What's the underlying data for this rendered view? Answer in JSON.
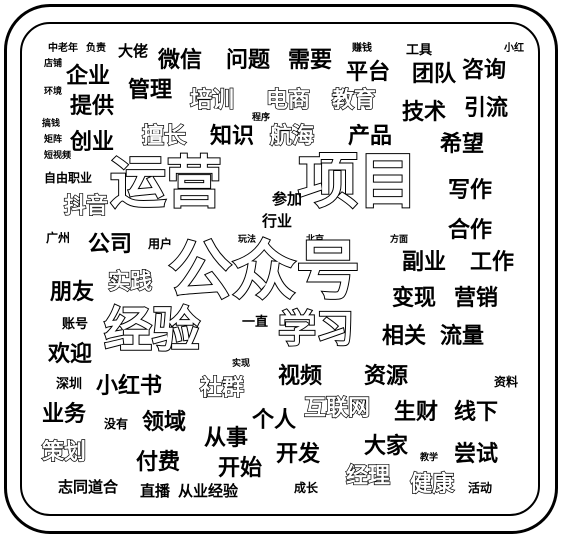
{
  "words": [
    "中老年",
    "负责",
    "大佬",
    "微信",
    "问题",
    "需要",
    "赚钱",
    "工具",
    "小红",
    "店铺",
    "企业",
    "管理",
    "平台",
    "团队",
    "咨询",
    "培训",
    "电商",
    "教育",
    "环境",
    "提供",
    "技术",
    "引流",
    "搞钱",
    "创业",
    "擅长",
    "知识",
    "航海",
    "产品",
    "希望",
    "程序",
    "矩阵",
    "短视频",
    "自由职业",
    "运营",
    "项目",
    "写作",
    "合作",
    "抖音",
    "参加",
    "行业",
    "广州",
    "公司",
    "用户",
    "玩法",
    "北京",
    "方面",
    "公众号",
    "副业",
    "工作",
    "朋友",
    "实践",
    "变现",
    "营销",
    "账号",
    "经验",
    "一直",
    "学习",
    "相关",
    "流量",
    "欢迎",
    "实现",
    "视频",
    "资源",
    "深圳",
    "小红书",
    "社群",
    "资料",
    "业务",
    "领域",
    "个人",
    "互联网",
    "生财",
    "线下",
    "没有",
    "策划",
    "从事",
    "大家",
    "尝试",
    "付费",
    "开始",
    "开发",
    "教学",
    "志同道合",
    "直播",
    "从业经验",
    "成长",
    "经理",
    "健康",
    "活动"
  ]
}
